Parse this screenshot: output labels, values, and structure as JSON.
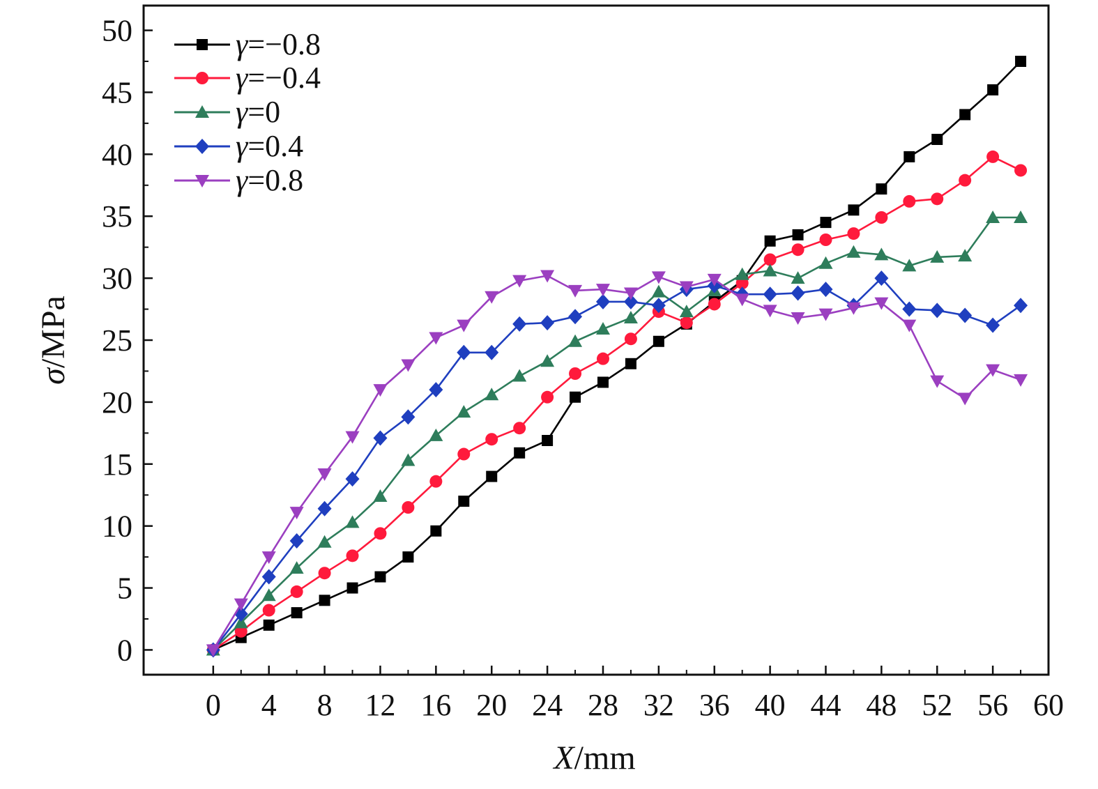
{
  "chart_data": {
    "type": "line",
    "title": "",
    "xlabel_var": "X",
    "xlabel_unit": "/mm",
    "ylabel_var": "σ",
    "ylabel_unit": "/MPa",
    "xlim": [
      -5,
      60
    ],
    "ylim": [
      -2,
      52
    ],
    "xticks": [
      0,
      4,
      8,
      12,
      16,
      20,
      24,
      28,
      32,
      36,
      40,
      44,
      48,
      52,
      56,
      60
    ],
    "yticks": [
      0,
      5,
      10,
      15,
      20,
      25,
      30,
      35,
      40,
      45,
      50
    ],
    "x": [
      0,
      2,
      4,
      6,
      8,
      10,
      12,
      14,
      16,
      18,
      20,
      22,
      24,
      26,
      28,
      30,
      32,
      34,
      36,
      38,
      40,
      42,
      44,
      46,
      48,
      50,
      52,
      54,
      56,
      58
    ],
    "legend_position": "top-left",
    "grid": false,
    "series": [
      {
        "name_var": "γ",
        "name_val": "=−0.8",
        "color": "#000000",
        "marker": "square",
        "values": [
          0,
          1.0,
          2.0,
          3.0,
          4.0,
          5.0,
          5.9,
          7.5,
          9.6,
          12.0,
          14.0,
          15.9,
          16.9,
          20.4,
          21.6,
          23.1,
          24.9,
          26.3,
          28.1,
          29.8,
          33.0,
          33.5,
          34.5,
          35.5,
          37.2,
          39.8,
          41.2,
          43.2,
          45.2,
          47.5
        ]
      },
      {
        "name_var": "γ",
        "name_val": "=−0.4",
        "color": "#ff1a3c",
        "marker": "circle",
        "values": [
          0,
          1.5,
          3.2,
          4.7,
          6.2,
          7.6,
          9.4,
          11.5,
          13.6,
          15.8,
          17.0,
          17.9,
          20.4,
          22.3,
          23.5,
          25.1,
          27.3,
          26.4,
          27.9,
          29.6,
          31.5,
          32.3,
          33.1,
          33.6,
          34.9,
          36.2,
          36.4,
          37.9,
          39.8,
          38.7
        ]
      },
      {
        "name_var": "γ",
        "name_val": "=0",
        "color": "#2e7d5b",
        "marker": "triangle-up",
        "values": [
          0,
          2.2,
          4.4,
          6.6,
          8.7,
          10.3,
          12.4,
          15.3,
          17.3,
          19.2,
          20.6,
          22.1,
          23.3,
          24.9,
          25.9,
          26.8,
          28.9,
          27.3,
          29.0,
          30.3,
          30.6,
          30.0,
          31.2,
          32.1,
          31.9,
          31.0,
          31.7,
          31.8,
          34.9,
          34.9
        ]
      },
      {
        "name_var": "γ",
        "name_val": "=0.4",
        "color": "#1f3fbf",
        "marker": "diamond",
        "values": [
          0,
          2.9,
          5.9,
          8.8,
          11.4,
          13.8,
          17.1,
          18.8,
          21.0,
          24.0,
          24.0,
          26.3,
          26.4,
          26.9,
          28.1,
          28.1,
          27.8,
          29.1,
          29.4,
          28.7,
          28.7,
          28.8,
          29.1,
          27.8,
          30.0,
          27.5,
          27.4,
          27.0,
          26.2,
          27.8
        ]
      },
      {
        "name_var": "γ",
        "name_val": "=0.8",
        "color": "#9b3fc0",
        "marker": "triangle-down",
        "values": [
          0,
          3.7,
          7.5,
          11.1,
          14.2,
          17.2,
          21.0,
          23.0,
          25.2,
          26.2,
          28.5,
          29.8,
          30.2,
          29.0,
          29.1,
          28.8,
          30.1,
          29.3,
          29.9,
          28.3,
          27.4,
          26.8,
          27.1,
          27.6,
          28.0,
          26.2,
          21.7,
          20.3,
          22.6,
          21.8
        ]
      }
    ]
  }
}
